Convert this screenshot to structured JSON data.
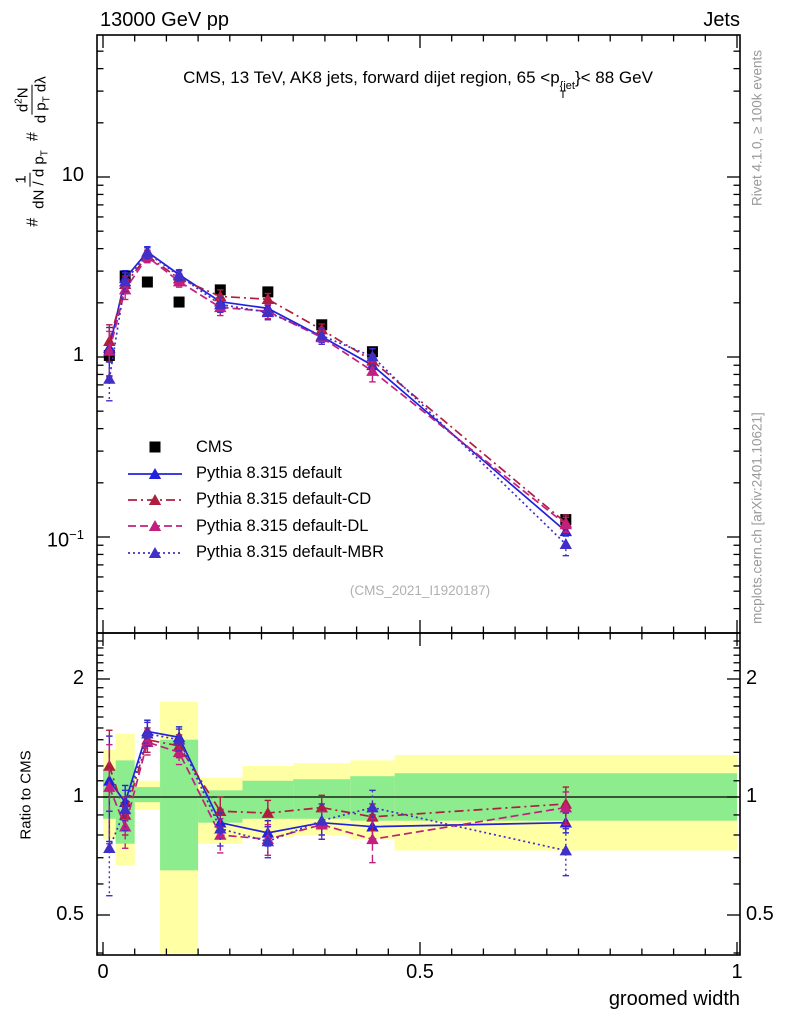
{
  "header": {
    "left": "13000 GeV pp",
    "right": "Jets"
  },
  "panel_title": {
    "prefix": "CMS, 13 TeV, AK8 jets, forward dijet region, 65 <p",
    "sup": "{jet",
    "sub": "T",
    "suffix": "}< 88 GeV"
  },
  "ylabel": {
    "hash1": "#",
    "frac1_num": "1",
    "frac1_den_pre": "dN / d p",
    "frac1_den_sub": "T",
    "hash2": "#",
    "frac2_num_pre": "d",
    "frac2_num_sup": "2",
    "frac2_num_post": "N",
    "frac2_den_pre": "d p",
    "frac2_den_sub": "T",
    "frac2_den_post": " dλ"
  },
  "ratio_ylabel": "Ratio to CMS",
  "xlabel": "groomed width",
  "right_margin": {
    "top": "Rivet 4.1.0, ≥ 100k events",
    "bottom": "mcplots.cern.ch [arXiv:2401.10621]"
  },
  "watermark": "(CMS_2021_I1920187)",
  "legend": [
    {
      "label": "CMS",
      "marker": "square",
      "color": "#000000",
      "dash": "none"
    },
    {
      "label": "Pythia 8.315 default",
      "marker": "triangle",
      "color": "#2222dd",
      "dash": "solid"
    },
    {
      "label": "Pythia 8.315 default-CD",
      "marker": "triangle",
      "color": "#ae1e3f",
      "dash": "dashdot"
    },
    {
      "label": "Pythia 8.315 default-DL",
      "marker": "triangle",
      "color": "#c2207f",
      "dash": "dashed"
    },
    {
      "label": "Pythia 8.315 default-MBR",
      "marker": "triangle",
      "color": "#4130c8",
      "dash": "dotted"
    }
  ],
  "axes": {
    "main_y": [
      {
        "text": "10",
        "sup": "",
        "v": 10
      },
      {
        "text": "1",
        "sup": "",
        "v": 1
      },
      {
        "text": "10",
        "sup": "−1",
        "v": 0.1
      }
    ],
    "ratio_y": [
      {
        "text": "2",
        "v": 2
      },
      {
        "text": "1",
        "v": 1
      },
      {
        "text": "0.5",
        "v": 0.5
      }
    ],
    "x": [
      {
        "text": "0",
        "v": 0
      },
      {
        "text": "0.5",
        "v": 0.5
      },
      {
        "text": "1",
        "v": 1
      }
    ]
  },
  "chart_data": {
    "type": "line",
    "title": "CMS, 13 TeV, AK8 jets, forward dijet region, 65 < p_T^{jet} < 88 GeV",
    "xlabel": "groomed width",
    "ylabel": "1/(dN/dp_T) d²N/(dp_T dλ)",
    "ylabel_ratio": "Ratio to CMS",
    "x_range": [
      0,
      1
    ],
    "main_ylog_range": [
      0.029,
      59
    ],
    "ratio_ylog_range": [
      0.4,
      2.59
    ],
    "bin_edges": [
      0,
      0.02,
      0.05,
      0.09,
      0.15,
      0.22,
      0.3,
      0.39,
      0.46,
      1.0
    ],
    "x": [
      0.01,
      0.035,
      0.07,
      0.12,
      0.185,
      0.26,
      0.345,
      0.425,
      0.73
    ],
    "cms": {
      "name": "CMS",
      "color": "#000000",
      "values": [
        1.02,
        2.82,
        2.61,
        2.02,
        2.36,
        2.3,
        1.51,
        1.07,
        0.125
      ],
      "errors": [
        0.08,
        0.09,
        0.08,
        0.06,
        0.07,
        0.07,
        0.05,
        0.035,
        0.006
      ]
    },
    "series": [
      {
        "name": "Pythia 8.315 default",
        "color": "#2222dd",
        "dash": "solid",
        "ratio": [
          1.1,
          0.97,
          1.47,
          1.42,
          0.86,
          0.81,
          0.86,
          0.84,
          0.86
        ],
        "ratio_err": [
          0.33,
          0.1,
          0.1,
          0.09,
          0.07,
          0.06,
          0.06,
          0.06,
          0.05
        ]
      },
      {
        "name": "Pythia 8.315 default-CD",
        "color": "#ae1e3f",
        "dash": "dashdot",
        "ratio": [
          1.2,
          0.9,
          1.4,
          1.35,
          0.92,
          0.91,
          0.94,
          0.89,
          0.96
        ],
        "ratio_err": [
          0.28,
          0.1,
          0.1,
          0.09,
          0.08,
          0.07,
          0.07,
          0.07,
          0.1
        ]
      },
      {
        "name": "Pythia 8.315 default-DL",
        "color": "#c2207f",
        "dash": "dashed",
        "ratio": [
          1.06,
          0.84,
          1.38,
          1.3,
          0.8,
          0.78,
          0.85,
          0.78,
          0.94
        ],
        "ratio_err": [
          0.3,
          0.1,
          0.1,
          0.09,
          0.08,
          0.07,
          0.07,
          0.1,
          0.09
        ]
      },
      {
        "name": "Pythia 8.315 default-MBR",
        "color": "#4130c8",
        "dash": "dotted",
        "ratio": [
          0.74,
          0.93,
          1.45,
          1.4,
          0.83,
          0.77,
          0.87,
          0.94,
          0.73
        ],
        "ratio_err": [
          0.18,
          0.11,
          0.1,
          0.09,
          0.08,
          0.07,
          0.09,
          0.1,
          0.1
        ]
      }
    ],
    "bands": {
      "yellow_color": "#ffffa3",
      "green_color": "#8dec8d",
      "yellow": [
        [
          0.78,
          1.32
        ],
        [
          0.67,
          1.45
        ],
        [
          0.93,
          1.1
        ],
        [
          0.4,
          1.75
        ],
        [
          0.76,
          1.12
        ],
        [
          0.79,
          1.2
        ],
        [
          0.8,
          1.22
        ],
        [
          0.78,
          1.24
        ],
        [
          0.73,
          1.28
        ]
      ],
      "green": [
        [
          0.88,
          1.18
        ],
        [
          0.76,
          1.24
        ],
        [
          0.97,
          1.06
        ],
        [
          0.65,
          1.4
        ],
        [
          0.86,
          1.04
        ],
        [
          0.88,
          1.1
        ],
        [
          0.88,
          1.11
        ],
        [
          0.87,
          1.13
        ],
        [
          0.87,
          1.15
        ]
      ]
    },
    "reference_line": 1,
    "legend_position": "upper-left-inside",
    "grid": false
  }
}
